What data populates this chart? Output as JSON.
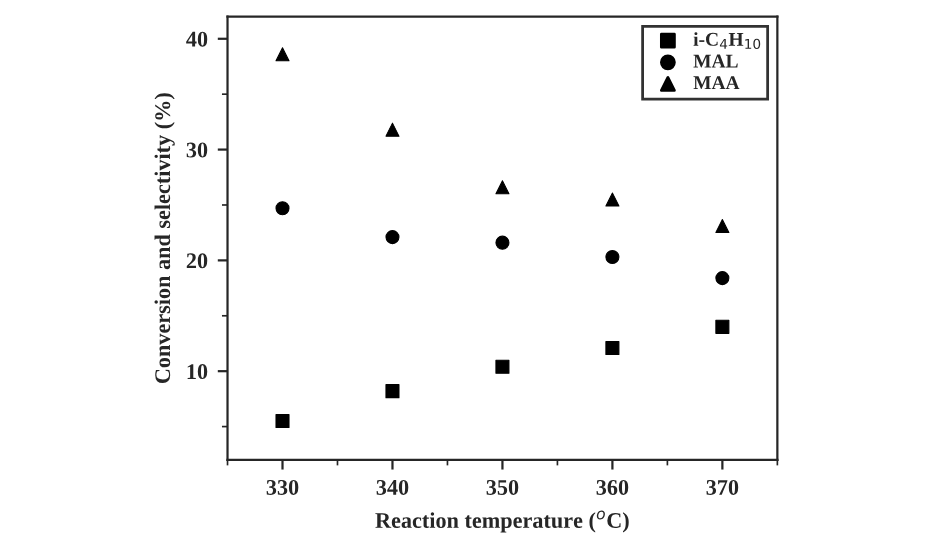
{
  "chart_data": {
    "type": "scatter",
    "xlabel": "Reaction temperature ($^{o}$C)",
    "ylabel": "Conversion and selectivity (%)",
    "x": [
      330,
      340,
      350,
      360,
      370
    ],
    "series": [
      {
        "name": "i-C$_{4}$H$_{10}$",
        "color": "#000000",
        "marker": "square",
        "values": [
          5.5,
          8.2,
          10.4,
          12.1,
          14.0
        ]
      },
      {
        "name": "MAL",
        "color": "#000000",
        "marker": "circle",
        "values": [
          24.7,
          22.1,
          21.6,
          20.3,
          18.4
        ]
      },
      {
        "name": "MAA",
        "color": "#000000",
        "marker": "triangle",
        "values": [
          38.6,
          31.8,
          26.6,
          25.5,
          23.1
        ]
      }
    ],
    "xlim": [
      325,
      375
    ],
    "xticks": [
      330,
      340,
      350,
      360,
      370
    ],
    "ylim": [
      2,
      42
    ],
    "yticks": [
      10,
      20,
      30,
      40
    ],
    "grid": false,
    "legend": "top right"
  }
}
